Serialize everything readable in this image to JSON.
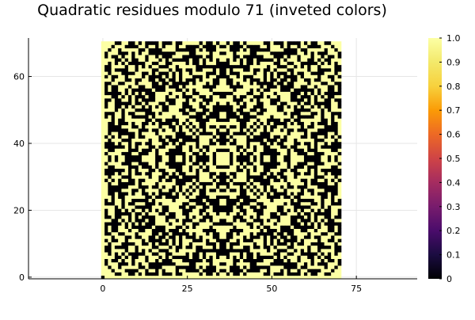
{
  "chart_data": {
    "type": "heatmap",
    "title": "Quadratic residues modulo 71 (inveted colors)",
    "modulus": 71,
    "value_rule": "1 where (x^2 + y^2) mod 71 is a nonzero quadratic residue, else 0",
    "x": {
      "range": [
        0,
        70
      ],
      "ticks": [
        0,
        25,
        50,
        75
      ],
      "xlim": [
        -22,
        93
      ]
    },
    "y": {
      "range": [
        0,
        70
      ],
      "ticks": [
        0,
        20,
        40,
        60
      ],
      "ylim": [
        -0.5,
        71.5
      ]
    },
    "colorbar": {
      "min": 0,
      "max": 1,
      "ticks": [
        "0",
        "0.1",
        "0.2",
        "0.3",
        "0.4",
        "0.5",
        "0.6",
        "0.7",
        "0.8",
        "0.9",
        "1.0"
      ],
      "colormap": "inferno"
    },
    "grid": true,
    "legend": "none"
  },
  "colors": {
    "high": "#fcffa4",
    "low": "#000004",
    "axis": "#000000",
    "grid": "#e6e6e6",
    "text": "#000000"
  }
}
